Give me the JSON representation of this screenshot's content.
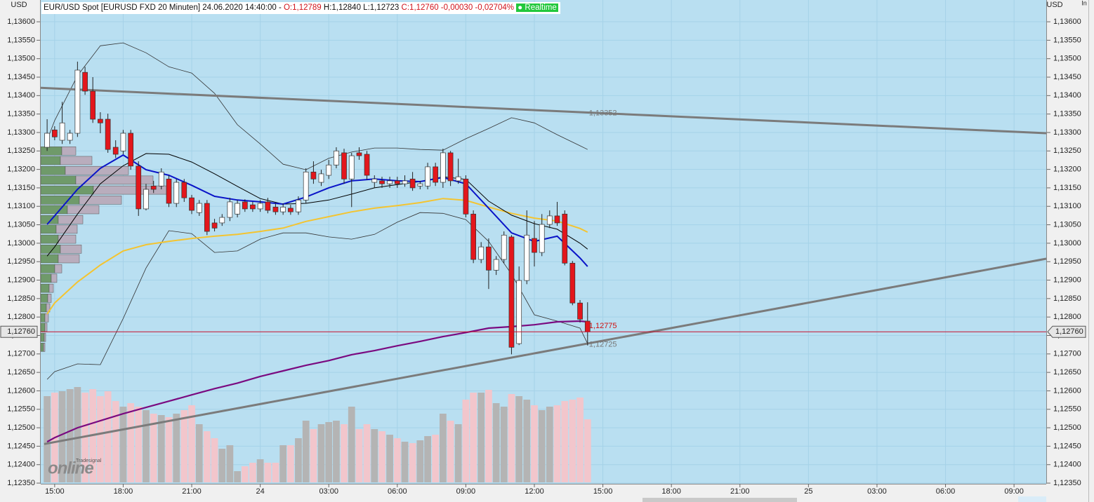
{
  "chart_data": {
    "type": "candlestick",
    "header": {
      "instrument": "EUR/USD Spot [EURUSD FXD 20 Minuten] 24.06.2020 14:40:00 -",
      "open": "O:1,12789",
      "high_low": "H:1,12840 L:1,12723",
      "close_change": "C:1,12760 -0,00030 -0,02704%",
      "status": "Realtime"
    },
    "currency_left": "USD",
    "currency_right": "USD",
    "corner_label": "In",
    "logo": {
      "brand": "Tradesignal",
      "name": "online"
    },
    "xlim": [
      -0.61,
      43.41
    ],
    "ylim": [
      1.12352,
      1.13659
    ],
    "grid": true,
    "xticks": [
      {
        "value": 0,
        "label": "15:00"
      },
      {
        "value": 3,
        "label": "18:00"
      },
      {
        "value": 6,
        "label": "21:00"
      },
      {
        "value": 9,
        "label": "24"
      },
      {
        "value": 12,
        "label": "03:00"
      },
      {
        "value": 15,
        "label": "06:00"
      },
      {
        "value": 18,
        "label": "09:00"
      },
      {
        "value": 21,
        "label": "12:00"
      },
      {
        "value": 24,
        "label": "15:00"
      },
      {
        "value": 27,
        "label": "18:00"
      },
      {
        "value": 30,
        "label": "21:00"
      },
      {
        "value": 33,
        "label": "25"
      },
      {
        "value": 36,
        "label": "03:00"
      },
      {
        "value": 39,
        "label": "06:00"
      },
      {
        "value": 42,
        "label": "09:00"
      }
    ],
    "yticks": [
      {
        "value": 1.136,
        "label": "1,13600"
      },
      {
        "value": 1.1355,
        "label": "1,13550"
      },
      {
        "value": 1.135,
        "label": "1,13500"
      },
      {
        "value": 1.1345,
        "label": "1,13450"
      },
      {
        "value": 1.134,
        "label": "1,13400"
      },
      {
        "value": 1.1335,
        "label": "1,13350"
      },
      {
        "value": 1.133,
        "label": "1,13300"
      },
      {
        "value": 1.1325,
        "label": "1,13250"
      },
      {
        "value": 1.132,
        "label": "1,13200"
      },
      {
        "value": 1.1315,
        "label": "1,13150"
      },
      {
        "value": 1.131,
        "label": "1,13100"
      },
      {
        "value": 1.1305,
        "label": "1,13050"
      },
      {
        "value": 1.13,
        "label": "1,13000"
      },
      {
        "value": 1.1295,
        "label": "1,12950"
      },
      {
        "value": 1.129,
        "label": "1,12900"
      },
      {
        "value": 1.1285,
        "label": "1,12850"
      },
      {
        "value": 1.128,
        "label": "1,12800"
      },
      {
        "value": 1.1275,
        "label": "1,12750"
      },
      {
        "value": 1.127,
        "label": "1,12700"
      },
      {
        "value": 1.1265,
        "label": "1,12650"
      },
      {
        "value": 1.126,
        "label": "1,12600"
      },
      {
        "value": 1.1255,
        "label": "1,12550"
      },
      {
        "value": 1.125,
        "label": "1,12500"
      },
      {
        "value": 1.1245,
        "label": "1,12450"
      },
      {
        "value": 1.124,
        "label": "1,12400"
      },
      {
        "value": 1.1235,
        "label": "1,12350"
      }
    ],
    "up_color": "#ffffff",
    "down_color": "#e3161c",
    "x": [
      -0.33,
      0,
      0.33,
      0.67,
      1,
      1.33,
      1.67,
      2,
      2.33,
      2.67,
      3,
      3.33,
      3.67,
      4,
      4.33,
      4.67,
      5,
      5.33,
      5.67,
      6,
      6.33,
      6.67,
      7,
      7.33,
      7.67,
      8,
      8.33,
      8.67,
      9,
      9.33,
      9.67,
      10,
      10.33,
      10.67,
      11,
      11.33,
      11.67,
      12,
      12.33,
      12.67,
      13,
      13.33,
      13.67,
      14,
      14.33,
      14.67,
      15,
      15.33,
      15.67,
      16,
      16.33,
      16.67,
      17,
      17.33,
      17.67,
      18,
      18.33,
      18.67,
      19,
      19.33,
      19.67,
      20,
      20.33,
      20.67,
      21,
      21.33,
      21.67,
      22,
      22.33,
      22.67,
      23,
      23.33
    ],
    "open": [
      1.1326,
      1.13307,
      1.13279,
      1.13279,
      1.13298,
      1.13463,
      1.13412,
      1.13336,
      1.13336,
      1.1326,
      1.1325,
      1.13298,
      1.13209,
      1.13093,
      1.13155,
      1.13155,
      1.13174,
      1.13108,
      1.13165,
      1.13123,
      1.13083,
      1.13108,
      1.13055,
      1.13055,
      1.1307,
      1.13079,
      1.13112,
      1.13104,
      1.13093,
      1.13112,
      1.13098,
      1.13085,
      1.13095,
      1.13085,
      1.13117,
      1.13193,
      1.13165,
      1.13184,
      1.13212,
      1.13245,
      1.13174,
      1.13245,
      1.13241,
      1.13165,
      1.13169,
      1.13161,
      1.13169,
      1.13161,
      1.13174,
      1.13155,
      1.13155,
      1.13207,
      1.13165,
      1.13245,
      1.13169,
      1.13174,
      1.13079,
      1.12956,
      1.1299,
      1.12927,
      1.12956,
      1.13017,
      1.12728,
      1.12899,
      1.13013,
      1.12975,
      1.13051,
      1.13074,
      1.13079,
      1.12946,
      1.12838,
      1.12789
    ],
    "high": [
      1.13336,
      1.13317,
      1.13383,
      1.13307,
      1.13492,
      1.13478,
      1.1345,
      1.13355,
      1.13351,
      1.13279,
      1.13307,
      1.13307,
      1.13222,
      1.13161,
      1.13169,
      1.13203,
      1.13184,
      1.13174,
      1.13174,
      1.13131,
      1.13117,
      1.13117,
      1.13066,
      1.13079,
      1.13123,
      1.13117,
      1.13119,
      1.13112,
      1.13117,
      1.13123,
      1.13108,
      1.13108,
      1.13104,
      1.13127,
      1.13203,
      1.13222,
      1.13199,
      1.13226,
      1.1326,
      1.13256,
      1.13245,
      1.1326,
      1.1325,
      1.13184,
      1.1318,
      1.1318,
      1.1318,
      1.13184,
      1.13193,
      1.13169,
      1.13218,
      1.13218,
      1.13256,
      1.1325,
      1.13229,
      1.13184,
      1.13089,
      1.13003,
      1.13013,
      1.12965,
      1.13032,
      1.13022,
      1.12937,
      1.13089,
      1.1306,
      1.13079,
      1.13089,
      1.13112,
      1.13089,
      1.12952,
      1.12846,
      1.1284
    ],
    "low": [
      1.1325,
      1.13279,
      1.13269,
      1.13269,
      1.13288,
      1.13402,
      1.13326,
      1.13298,
      1.13245,
      1.13231,
      1.13241,
      1.13199,
      1.13074,
      1.13089,
      1.13136,
      1.13146,
      1.13098,
      1.13098,
      1.13112,
      1.13079,
      1.13074,
      1.13022,
      1.13032,
      1.13047,
      1.1306,
      1.1307,
      1.13085,
      1.13085,
      1.13085,
      1.13081,
      1.13077,
      1.13077,
      1.13077,
      1.13077,
      1.13108,
      1.13161,
      1.13155,
      1.13174,
      1.13203,
      1.13161,
      1.13098,
      1.13226,
      1.13172,
      1.1315,
      1.1315,
      1.1315,
      1.1315,
      1.13153,
      1.13142,
      1.13146,
      1.13146,
      1.13155,
      1.1315,
      1.13155,
      1.13161,
      1.1307,
      1.12946,
      1.12946,
      1.12876,
      1.12914,
      1.12946,
      1.12699,
      1.12724,
      1.12889,
      1.12937,
      1.12965,
      1.13041,
      1.13047,
      1.1294,
      1.12832,
      1.12785,
      1.12723
    ],
    "close": [
      1.13298,
      1.13288,
      1.13326,
      1.13298,
      1.13469,
      1.13412,
      1.13336,
      1.13326,
      1.13254,
      1.13241,
      1.13298,
      1.13209,
      1.13093,
      1.13146,
      1.13146,
      1.13193,
      1.13108,
      1.13165,
      1.13123,
      1.13089,
      1.13108,
      1.13032,
      1.13041,
      1.1307,
      1.13112,
      1.13108,
      1.13093,
      1.13093,
      1.13108,
      1.13089,
      1.13085,
      1.13098,
      1.13085,
      1.13117,
      1.13193,
      1.13174,
      1.13188,
      1.13212,
      1.1325,
      1.13174,
      1.13237,
      1.13237,
      1.13184,
      1.13174,
      1.13161,
      1.13169,
      1.13161,
      1.13169,
      1.1315,
      1.13161,
      1.13207,
      1.13165,
      1.13245,
      1.13169,
      1.1318,
      1.13079,
      1.12956,
      1.1299,
      1.12927,
      1.12956,
      1.13022,
      1.12718,
      1.12899,
      1.13022,
      1.12975,
      1.13051,
      1.13074,
      1.13055,
      1.12946,
      1.12838,
      1.12794,
      1.1276
    ],
    "volume": {
      "ylim": [
        0,
        400
      ],
      "up_color": "#b4b4b4",
      "down_color": "#f2c6cc",
      "values": [
        123,
        128,
        130,
        133,
        136,
        128,
        133,
        123,
        130,
        116,
        108,
        113,
        108,
        103,
        98,
        96,
        93,
        98,
        103,
        110,
        83,
        73,
        63,
        48,
        53,
        16,
        23,
        28,
        33,
        28,
        28,
        53,
        53,
        63,
        88,
        76,
        83,
        86,
        88,
        83,
        108,
        76,
        83,
        76,
        73,
        68,
        63,
        58,
        56,
        60,
        66,
        68,
        98,
        88,
        83,
        118,
        128,
        128,
        132,
        113,
        108,
        126,
        123,
        118,
        110,
        103,
        108,
        110,
        116,
        118,
        121,
        90
      ]
    },
    "profile": {
      "xlim": [
        0,
        150
      ],
      "levels": [
        1.1325,
        1.13224,
        1.13197,
        1.13171,
        1.13144,
        1.13117,
        1.13091,
        1.13064,
        1.13038,
        1.13011,
        1.12984,
        1.12958,
        1.12931,
        1.12905,
        1.12878,
        1.12851,
        1.12825,
        1.12798,
        1.12772,
        1.12745,
        1.12718
      ],
      "series": [
        {
          "color": "#6f9a6a",
          "values": [
            30,
            28,
            35,
            50,
            75,
            55,
            38,
            25,
            22,
            25,
            28,
            25,
            20,
            15,
            12,
            10,
            8,
            6,
            6,
            5,
            4
          ]
        },
        {
          "color": "#b9adbd",
          "values": [
            20,
            45,
            90,
            110,
            110,
            60,
            45,
            35,
            30,
            25,
            30,
            30,
            10,
            8,
            6,
            5,
            5,
            5,
            3,
            2,
            2
          ]
        }
      ]
    },
    "indicators": {
      "x": [
        -0.33,
        0,
        1,
        2,
        3,
        4,
        5,
        6,
        7,
        8,
        9,
        10,
        11,
        12,
        13,
        14,
        15,
        16,
        17,
        18,
        19,
        20,
        21,
        22,
        23,
        23.33
      ],
      "series": [
        {
          "color": "#333333",
          "width": 0.8,
          "values": [
            1.13279,
            1.13332,
            1.13454,
            1.13535,
            1.13543,
            1.13516,
            1.13478,
            1.13461,
            1.13406,
            1.13321,
            1.13269,
            1.13214,
            1.13199,
            1.1323,
            1.13247,
            1.13258,
            1.13258,
            1.13254,
            1.13252,
            1.13283,
            1.13311,
            1.1334,
            1.13326,
            1.13294,
            1.13264,
            1.13254
          ]
        },
        {
          "color": "#333333",
          "width": 0.8,
          "values": [
            1.12631,
            1.12652,
            1.12673,
            1.12671,
            1.12796,
            1.12933,
            1.13034,
            1.13026,
            1.12975,
            1.12979,
            1.13011,
            1.13028,
            1.13028,
            1.13017,
            1.13011,
            1.13024,
            1.13057,
            1.13083,
            1.13081,
            1.13064,
            1.13005,
            1.12916,
            1.12806,
            1.12789,
            1.1277,
            1.12728
          ]
        },
        {
          "color": "#f4c430",
          "width": 2,
          "values": [
            1.12808,
            1.12838,
            1.12895,
            1.12941,
            1.12979,
            1.12996,
            1.13005,
            1.13013,
            1.13019,
            1.13024,
            1.13032,
            1.13041,
            1.13059,
            1.13072,
            1.13085,
            1.13095,
            1.13102,
            1.1311,
            1.13121,
            1.13116,
            1.13098,
            1.13081,
            1.13068,
            1.1306,
            1.1304,
            1.1303
          ]
        },
        {
          "color": "#7a0a80",
          "width": 2.2,
          "values": [
            1.12462,
            1.12473,
            1.125,
            1.12519,
            1.12538,
            1.12555,
            1.12572,
            1.12589,
            1.12606,
            1.12621,
            1.12639,
            1.12654,
            1.12669,
            1.12682,
            1.12698,
            1.12709,
            1.12722,
            1.12734,
            1.12747,
            1.12758,
            1.1277,
            1.12774,
            1.12779,
            1.12787,
            1.12789,
            1.12787
          ]
        },
        {
          "color": "#000000",
          "width": 1,
          "values": [
            1.12965,
            1.1299,
            1.13079,
            1.13161,
            1.1321,
            1.13243,
            1.13241,
            1.1322,
            1.13188,
            1.13154,
            1.13121,
            1.13106,
            1.13108,
            1.13117,
            1.13133,
            1.1315,
            1.13159,
            1.13167,
            1.1318,
            1.13173,
            1.13114,
            1.13076,
            1.13053,
            1.13038,
            1.13,
            1.12984
          ]
        },
        {
          "color": "#0a14c8",
          "width": 2,
          "values": [
            1.13051,
            1.13074,
            1.13146,
            1.13203,
            1.13239,
            1.13199,
            1.13184,
            1.13157,
            1.13127,
            1.13117,
            1.13112,
            1.13106,
            1.13125,
            1.1315,
            1.13169,
            1.13174,
            1.13169,
            1.13167,
            1.13178,
            1.13161,
            1.13095,
            1.13028,
            1.13005,
            1.13019,
            1.1296,
            1.12937
          ]
        }
      ]
    },
    "trendlines": [
      {
        "color": "#7b7b7b",
        "x": [
          -0.61,
          43.41
        ],
        "values": [
          1.13421,
          1.13298
        ]
      },
      {
        "color": "#7b7b7b",
        "x": [
          -0.46,
          43.41
        ],
        "values": [
          1.12456,
          1.12958
        ]
      }
    ],
    "current_price": {
      "value": 1.1276,
      "label": "1,12760",
      "color": "#c8102e"
    },
    "annotations": [
      {
        "value": 1.13352,
        "label": "1,13352",
        "color": "#777777"
      },
      {
        "value": 1.12775,
        "label": "1,12775",
        "color": "#d01010"
      },
      {
        "value": 1.12725,
        "label": "1,12725",
        "color": "#777777"
      }
    ]
  }
}
